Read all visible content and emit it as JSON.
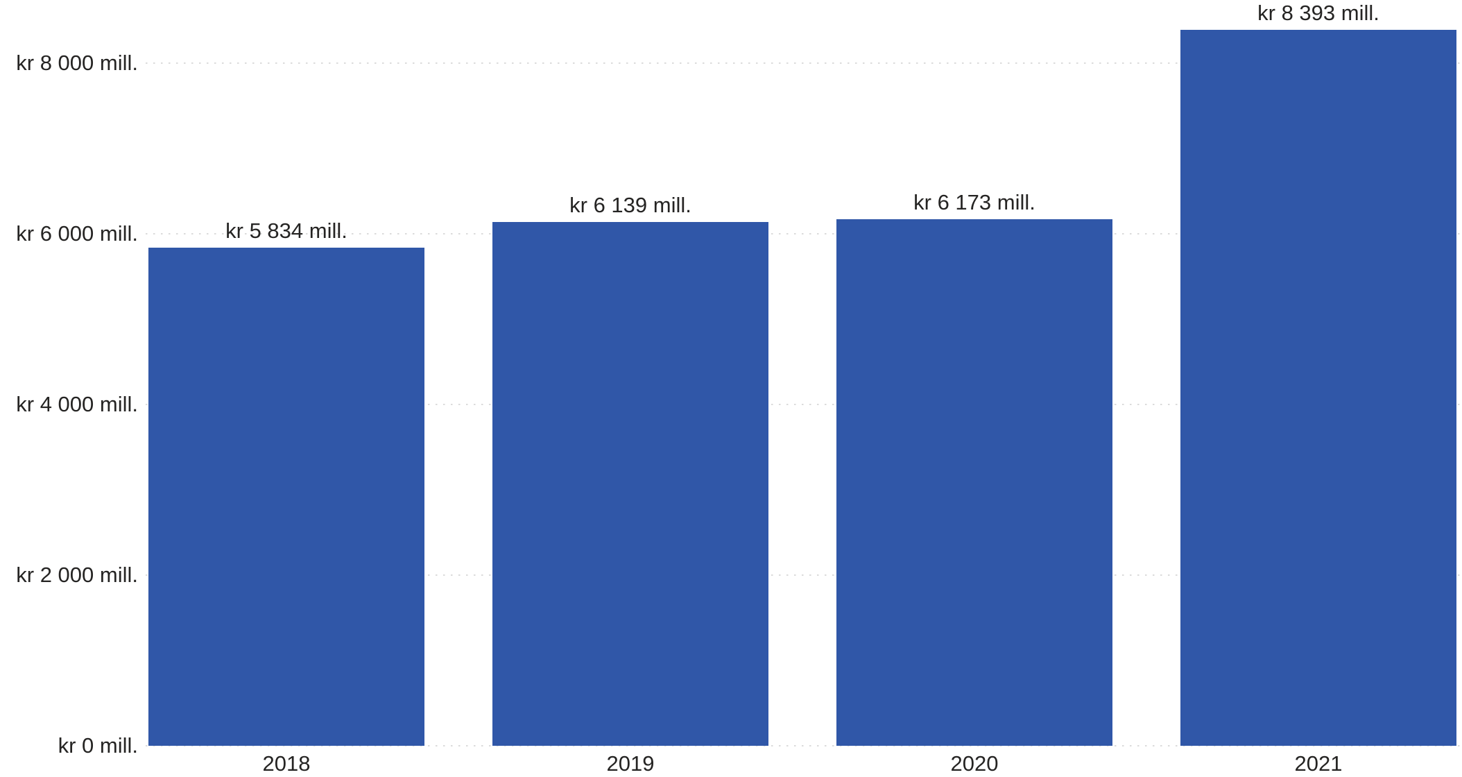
{
  "chart_data": {
    "type": "bar",
    "title": "",
    "categories": [
      "2018",
      "2019",
      "2020",
      "2021"
    ],
    "values": [
      5834,
      6139,
      6173,
      8393
    ],
    "bar_labels": [
      "kr 5 834 mill.",
      "kr 6 139 mill.",
      "kr 6 173 mill.",
      "kr 8 393 mill."
    ],
    "y_ticks": [
      {
        "value": 0,
        "label": "kr 0 mill."
      },
      {
        "value": 2000,
        "label": "kr 2 000 mill."
      },
      {
        "value": 4000,
        "label": "kr 4 000 mill."
      },
      {
        "value": 6000,
        "label": "kr 6 000 mill."
      },
      {
        "value": 8000,
        "label": "kr 8 000 mill."
      }
    ],
    "ylim": [
      0,
      8740
    ],
    "xlabel": "",
    "ylabel": "",
    "currency_prefix": "kr",
    "unit_suffix": "mill.",
    "legend": "none",
    "grid": "dotted-horizontal",
    "colors": {
      "bar": "#3057A8",
      "text": "#252423",
      "gridline": "#DBDBDB",
      "background": "#FFFFFF"
    }
  }
}
